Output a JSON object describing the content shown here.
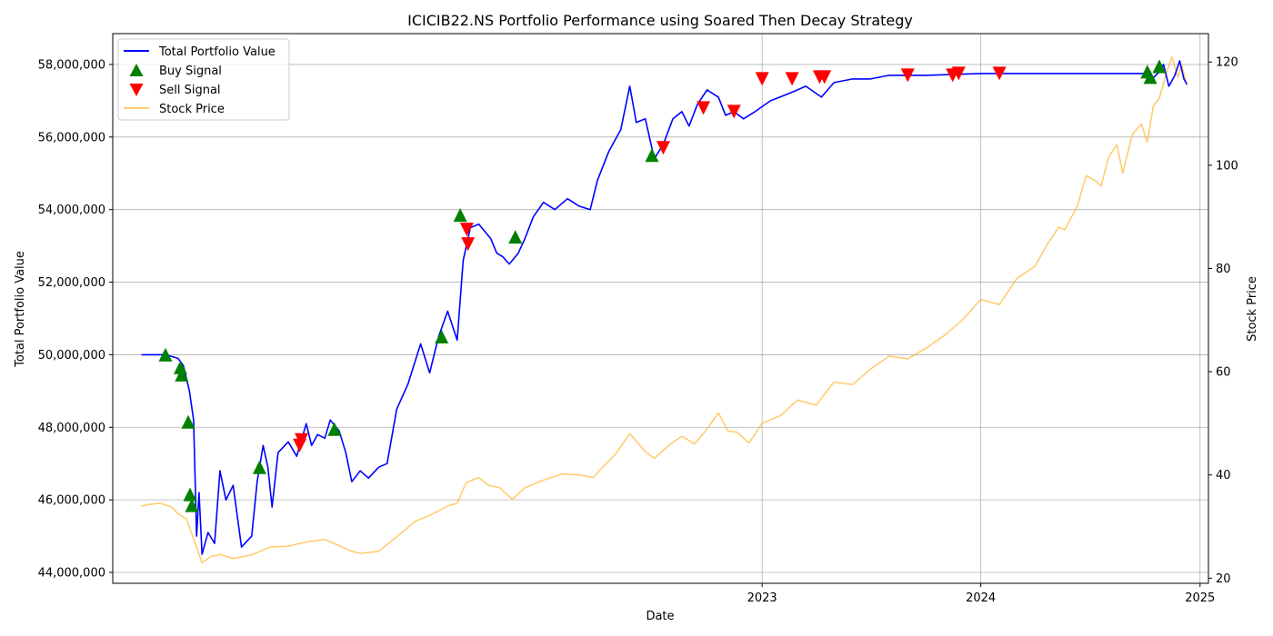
{
  "chart_data": {
    "type": "line",
    "title": "ICICIB22.NS Portfolio Performance using Soared Then Decay Strategy",
    "xlabel": "Date",
    "ylabel_left": "Total Portfolio Value",
    "ylabel_right": "Stock Price",
    "x_range": [
      "2020-01-13",
      "2025-01-15"
    ],
    "x_ticks": [
      "2023",
      "2024",
      "2025"
    ],
    "x_tick_dates": [
      "2023-01-01",
      "2024-01-01",
      "2025-01-01"
    ],
    "ylim_left": [
      43700000,
      58850000
    ],
    "ylim_right": [
      19.0,
      125.5
    ],
    "y_ticks_left": [
      44000000,
      46000000,
      48000000,
      50000000,
      52000000,
      54000000,
      56000000,
      58000000
    ],
    "y_tick_labels_left": [
      "44,000,000",
      "46,000,000",
      "48,000,000",
      "50,000,000",
      "52,000,000",
      "54,000,000",
      "56,000,000",
      "58,000,000"
    ],
    "y_ticks_right": [
      20,
      40,
      60,
      80,
      100,
      120
    ],
    "y_tick_labels_right": [
      "20",
      "40",
      "60",
      "80",
      "100",
      "120"
    ],
    "grid": true,
    "legend_position": "top-left",
    "colors": {
      "portfolio": "#0000ff",
      "buy": "#008000",
      "sell": "#ff0000",
      "price": "#ffb733"
    },
    "series": [
      {
        "name": "Total Portfolio Value",
        "axis": "left",
        "points": [
          [
            "2020-03-01",
            50000000
          ],
          [
            "2020-04-10",
            50000000
          ],
          [
            "2020-05-01",
            49900000
          ],
          [
            "2020-05-10",
            49700000
          ],
          [
            "2020-05-20",
            49000000
          ],
          [
            "2020-05-27",
            48200000
          ],
          [
            "2020-06-01",
            45000000
          ],
          [
            "2020-06-05",
            46200000
          ],
          [
            "2020-06-10",
            44500000
          ],
          [
            "2020-06-20",
            45100000
          ],
          [
            "2020-07-01",
            44800000
          ],
          [
            "2020-07-10",
            46800000
          ],
          [
            "2020-07-20",
            46000000
          ],
          [
            "2020-08-01",
            46400000
          ],
          [
            "2020-08-15",
            44700000
          ],
          [
            "2020-09-01",
            45000000
          ],
          [
            "2020-09-10",
            46500000
          ],
          [
            "2020-09-20",
            47500000
          ],
          [
            "2020-09-28",
            46900000
          ],
          [
            "2020-10-05",
            45800000
          ],
          [
            "2020-10-15",
            47300000
          ],
          [
            "2020-11-01",
            47600000
          ],
          [
            "2020-11-15",
            47200000
          ],
          [
            "2020-12-01",
            48100000
          ],
          [
            "2020-12-10",
            47500000
          ],
          [
            "2020-12-20",
            47800000
          ],
          [
            "2021-01-01",
            47700000
          ],
          [
            "2021-01-10",
            48200000
          ],
          [
            "2021-01-25",
            47900000
          ],
          [
            "2021-02-05",
            47300000
          ],
          [
            "2021-02-15",
            46500000
          ],
          [
            "2021-03-01",
            46800000
          ],
          [
            "2021-03-15",
            46600000
          ],
          [
            "2021-04-01",
            46900000
          ],
          [
            "2021-04-15",
            47000000
          ],
          [
            "2021-05-01",
            48500000
          ],
          [
            "2021-05-20",
            49200000
          ],
          [
            "2021-06-10",
            50300000
          ],
          [
            "2021-06-25",
            49500000
          ],
          [
            "2021-07-10",
            50500000
          ],
          [
            "2021-07-25",
            51200000
          ],
          [
            "2021-08-10",
            50400000
          ],
          [
            "2021-08-20",
            52600000
          ],
          [
            "2021-09-01",
            53500000
          ],
          [
            "2021-09-15",
            53600000
          ],
          [
            "2021-09-25",
            53400000
          ],
          [
            "2021-10-05",
            53200000
          ],
          [
            "2021-10-15",
            52800000
          ],
          [
            "2021-10-25",
            52700000
          ],
          [
            "2021-11-05",
            52500000
          ],
          [
            "2021-11-20",
            52800000
          ],
          [
            "2021-12-01",
            53200000
          ],
          [
            "2021-12-15",
            53800000
          ],
          [
            "2022-01-01",
            54200000
          ],
          [
            "2022-01-20",
            54000000
          ],
          [
            "2022-02-10",
            54300000
          ],
          [
            "2022-03-01",
            54100000
          ],
          [
            "2022-03-20",
            54000000
          ],
          [
            "2022-04-01",
            54800000
          ],
          [
            "2022-04-20",
            55600000
          ],
          [
            "2022-05-10",
            56200000
          ],
          [
            "2022-05-25",
            57400000
          ],
          [
            "2022-06-05",
            56400000
          ],
          [
            "2022-06-20",
            56500000
          ],
          [
            "2022-07-05",
            55400000
          ],
          [
            "2022-07-20",
            55800000
          ],
          [
            "2022-08-05",
            56500000
          ],
          [
            "2022-08-20",
            56700000
          ],
          [
            "2022-09-01",
            56300000
          ],
          [
            "2022-09-15",
            56900000
          ],
          [
            "2022-10-01",
            57300000
          ],
          [
            "2022-10-20",
            57100000
          ],
          [
            "2022-11-01",
            56600000
          ],
          [
            "2022-11-15",
            56700000
          ],
          [
            "2022-12-01",
            56500000
          ],
          [
            "2022-12-20",
            56700000
          ],
          [
            "2023-01-15",
            57000000
          ],
          [
            "2023-02-15",
            57200000
          ],
          [
            "2023-03-15",
            57400000
          ],
          [
            "2023-04-10",
            57100000
          ],
          [
            "2023-05-01",
            57500000
          ],
          [
            "2023-06-01",
            57600000
          ],
          [
            "2023-07-01",
            57600000
          ],
          [
            "2023-08-01",
            57700000
          ],
          [
            "2023-10-01",
            57700000
          ],
          [
            "2024-01-01",
            57750000
          ],
          [
            "2024-06-01",
            57750000
          ],
          [
            "2024-09-30",
            57750000
          ],
          [
            "2024-10-10",
            57550000
          ],
          [
            "2024-10-25",
            57800000
          ],
          [
            "2024-11-01",
            58000000
          ],
          [
            "2024-11-10",
            57400000
          ],
          [
            "2024-11-20",
            57700000
          ],
          [
            "2024-11-28",
            58100000
          ],
          [
            "2024-12-05",
            57600000
          ],
          [
            "2024-12-10",
            57450000
          ]
        ]
      },
      {
        "name": "Stock Price",
        "axis": "right",
        "points": [
          [
            "2020-03-01",
            34.0
          ],
          [
            "2020-03-15",
            34.3
          ],
          [
            "2020-04-01",
            34.5
          ],
          [
            "2020-04-20",
            33.8
          ],
          [
            "2020-05-01",
            32.5
          ],
          [
            "2020-05-15",
            31.5
          ],
          [
            "2020-06-01",
            26.0
          ],
          [
            "2020-06-10",
            23.0
          ],
          [
            "2020-06-25",
            24.2
          ],
          [
            "2020-07-10",
            24.6
          ],
          [
            "2020-08-01",
            23.8
          ],
          [
            "2020-09-01",
            24.5
          ],
          [
            "2020-10-01",
            26.0
          ],
          [
            "2020-11-01",
            26.2
          ],
          [
            "2020-12-01",
            27.0
          ],
          [
            "2021-01-01",
            27.5
          ],
          [
            "2021-01-25",
            26.3
          ],
          [
            "2021-02-15",
            25.2
          ],
          [
            "2021-03-01",
            24.8
          ],
          [
            "2021-04-01",
            25.2
          ],
          [
            "2021-05-01",
            28.0
          ],
          [
            "2021-06-01",
            31.0
          ],
          [
            "2021-07-01",
            32.5
          ],
          [
            "2021-07-25",
            34.0
          ],
          [
            "2021-08-10",
            34.5
          ],
          [
            "2021-08-25",
            38.5
          ],
          [
            "2021-09-15",
            39.5
          ],
          [
            "2021-10-01",
            38.0
          ],
          [
            "2021-10-20",
            37.5
          ],
          [
            "2021-11-10",
            35.3
          ],
          [
            "2021-12-01",
            37.5
          ],
          [
            "2022-01-01",
            39.0
          ],
          [
            "2022-02-01",
            40.2
          ],
          [
            "2022-03-01",
            40.0
          ],
          [
            "2022-03-25",
            39.5
          ],
          [
            "2022-04-10",
            41.5
          ],
          [
            "2022-05-01",
            44.0
          ],
          [
            "2022-05-25",
            48.0
          ],
          [
            "2022-06-20",
            44.5
          ],
          [
            "2022-07-05",
            43.2
          ],
          [
            "2022-08-01",
            46.0
          ],
          [
            "2022-08-20",
            47.5
          ],
          [
            "2022-09-10",
            46.0
          ],
          [
            "2022-09-25",
            48.0
          ],
          [
            "2022-10-20",
            52.0
          ],
          [
            "2022-11-05",
            48.5
          ],
          [
            "2022-11-20",
            48.3
          ],
          [
            "2022-12-10",
            46.2
          ],
          [
            "2023-01-01",
            50.0
          ],
          [
            "2023-02-01",
            51.5
          ],
          [
            "2023-03-01",
            54.5
          ],
          [
            "2023-04-01",
            53.5
          ],
          [
            "2023-05-01",
            58.0
          ],
          [
            "2023-06-01",
            57.5
          ],
          [
            "2023-07-01",
            60.5
          ],
          [
            "2023-08-01",
            63.0
          ],
          [
            "2023-09-01",
            62.5
          ],
          [
            "2023-10-01",
            64.5
          ],
          [
            "2023-11-01",
            67.0
          ],
          [
            "2023-12-01",
            70.0
          ],
          [
            "2024-01-01",
            74.0
          ],
          [
            "2024-02-01",
            73.0
          ],
          [
            "2024-03-01",
            78.0
          ],
          [
            "2024-04-01",
            80.5
          ],
          [
            "2024-04-20",
            84.5
          ],
          [
            "2024-05-10",
            88.0
          ],
          [
            "2024-05-20",
            87.5
          ],
          [
            "2024-06-10",
            92.0
          ],
          [
            "2024-06-25",
            98.0
          ],
          [
            "2024-07-10",
            97.0
          ],
          [
            "2024-07-20",
            96.0
          ],
          [
            "2024-08-01",
            101.5
          ],
          [
            "2024-08-15",
            104.0
          ],
          [
            "2024-08-25",
            98.5
          ],
          [
            "2024-09-10",
            106.0
          ],
          [
            "2024-09-25",
            108.0
          ],
          [
            "2024-10-05",
            104.5
          ],
          [
            "2024-10-15",
            111.5
          ],
          [
            "2024-10-25",
            113.0
          ],
          [
            "2024-11-05",
            117.5
          ],
          [
            "2024-11-15",
            121.0
          ],
          [
            "2024-11-25",
            117.0
          ],
          [
            "2024-12-01",
            119.5
          ],
          [
            "2024-12-10",
            115.5
          ]
        ]
      },
      {
        "name": "Buy Signal",
        "axis": "left",
        "marker": "triangle-up",
        "points": [
          [
            "2020-04-10",
            50000000
          ],
          [
            "2020-05-05",
            49650000
          ],
          [
            "2020-05-07",
            49450000
          ],
          [
            "2020-05-18",
            48150000
          ],
          [
            "2020-05-21",
            46150000
          ],
          [
            "2020-05-24",
            45850000
          ],
          [
            "2020-09-14",
            46900000
          ],
          [
            "2021-01-17",
            47950000
          ],
          [
            "2021-07-15",
            50500000
          ],
          [
            "2021-08-15",
            53850000
          ],
          [
            "2021-11-15",
            53250000
          ],
          [
            "2022-07-01",
            55500000
          ],
          [
            "2024-10-05",
            57800000
          ],
          [
            "2024-10-10",
            57650000
          ],
          [
            "2024-10-25",
            57950000
          ]
        ]
      },
      {
        "name": "Sell Signal",
        "axis": "left",
        "marker": "triangle-down",
        "points": [
          [
            "2020-11-20",
            47500000
          ],
          [
            "2020-11-23",
            47650000
          ],
          [
            "2021-08-26",
            53450000
          ],
          [
            "2021-08-28",
            53050000
          ],
          [
            "2022-07-20",
            55700000
          ],
          [
            "2022-09-25",
            56800000
          ],
          [
            "2022-11-15",
            56700000
          ],
          [
            "2023-01-01",
            57600000
          ],
          [
            "2023-02-20",
            57600000
          ],
          [
            "2023-04-07",
            57650000
          ],
          [
            "2023-04-15",
            57650000
          ],
          [
            "2023-09-01",
            57700000
          ],
          [
            "2023-11-15",
            57700000
          ],
          [
            "2023-11-25",
            57750000
          ],
          [
            "2024-02-01",
            57750000
          ]
        ]
      }
    ]
  }
}
